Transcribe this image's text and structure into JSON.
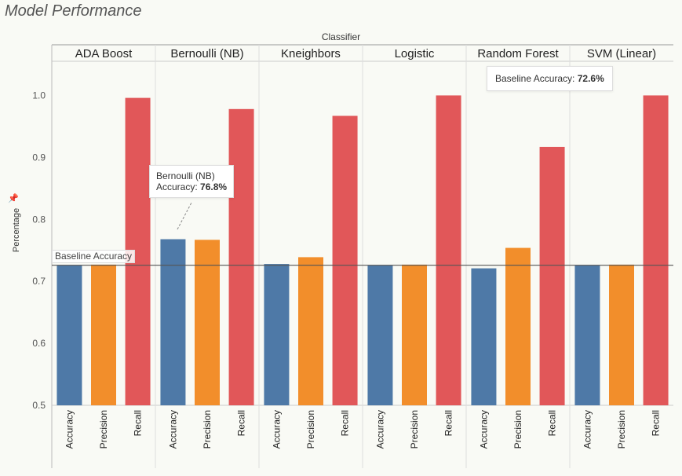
{
  "title": "Model Performance",
  "chart_data": {
    "type": "bar",
    "column_header": "Classifier",
    "ylabel": "Percentage",
    "ylim": [
      0.5,
      1.05
    ],
    "yticks": [
      "0.5",
      "0.6",
      "0.7",
      "0.8",
      "0.9",
      "1.0"
    ],
    "metrics": [
      "Accuracy",
      "Precision",
      "Recall"
    ],
    "metric_colors": {
      "Accuracy": "#4e79a7",
      "Precision": "#f28e2b",
      "Recall": "#e15759"
    },
    "panels": [
      {
        "name": "ADA Boost",
        "values": [
          0.726,
          0.727,
          0.996
        ]
      },
      {
        "name": "Bernoulli (NB)",
        "values": [
          0.768,
          0.767,
          0.978
        ]
      },
      {
        "name": "Kneighbors",
        "values": [
          0.728,
          0.739,
          0.967
        ]
      },
      {
        "name": "Logistic",
        "values": [
          0.726,
          0.727,
          1.0
        ]
      },
      {
        "name": "Random Forest",
        "values": [
          0.721,
          0.754,
          0.917
        ]
      },
      {
        "name": "SVM (Linear)",
        "values": [
          0.726,
          0.727,
          1.0
        ]
      }
    ],
    "baseline": {
      "value": 0.726,
      "label": "Baseline Accuracy"
    },
    "grid": false
  },
  "tooltip_nb": {
    "line1": "Bernoulli (NB)",
    "line2_label": "Accuracy: ",
    "line2_value": "76.8%"
  },
  "tooltip_baseline": {
    "label": "Baseline Accuracy: ",
    "value": "72.6%"
  }
}
